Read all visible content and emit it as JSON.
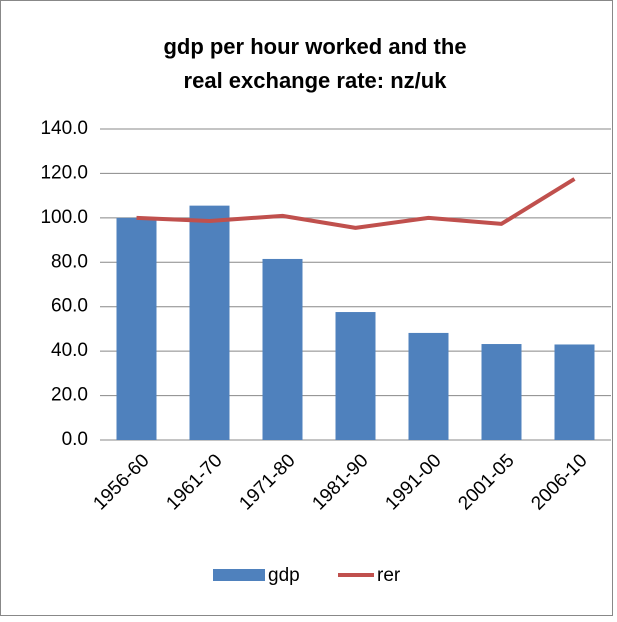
{
  "chart_data": {
    "type": "bar-line",
    "title": "gdp per hour worked and the real exchange rate: nz/uk",
    "categories": [
      "1956-60",
      "1961-70",
      "1971-80",
      "1981-90",
      "1991-00",
      "2001-05",
      "2006-10"
    ],
    "series": [
      {
        "name": "gdp",
        "type": "bar",
        "color": "#4f81bd",
        "values": [
          100,
          105.5,
          81.5,
          57.6,
          48.2,
          43.2,
          43
        ]
      },
      {
        "name": "rer",
        "type": "line",
        "color": "#c0504d",
        "values": [
          100,
          98.6,
          100.9,
          95.5,
          100,
          97.3,
          117.5
        ]
      }
    ],
    "ylim": [
      0,
      140
    ],
    "yticks": [
      {
        "value": 0,
        "label": "0.0"
      },
      {
        "value": 20,
        "label": "20.0"
      },
      {
        "value": 40,
        "label": "40.0"
      },
      {
        "value": 60,
        "label": "60.0"
      },
      {
        "value": 80,
        "label": "80.0"
      },
      {
        "value": 100,
        "label": "100.0"
      },
      {
        "value": 120,
        "label": "120.0"
      },
      {
        "value": 140,
        "label": "140.0"
      }
    ],
    "grid": true,
    "legend": "bottom"
  }
}
